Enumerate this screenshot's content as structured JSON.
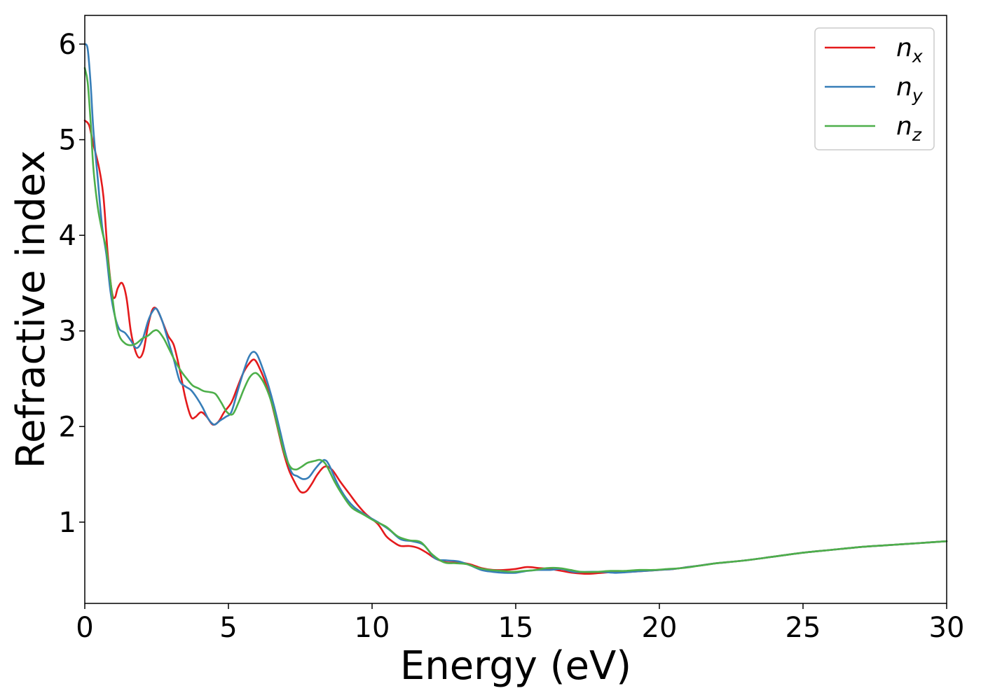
{
  "chart_data": {
    "type": "line",
    "xlabel": "Energy (eV)",
    "ylabel": "Refractive index",
    "xlim": [
      0,
      30
    ],
    "ylim": [
      0.15,
      6.3
    ],
    "xticks": [
      0,
      5,
      10,
      15,
      20,
      25,
      30
    ],
    "yticks": [
      1,
      2,
      3,
      4,
      5,
      6
    ],
    "grid": false,
    "legend_position": "top-right",
    "series": [
      {
        "name": "n",
        "subscript": "x",
        "color": "#e41a1c",
        "points": [
          [
            0,
            5.2
          ],
          [
            0.15,
            5.15
          ],
          [
            0.3,
            4.95
          ],
          [
            0.5,
            4.7
          ],
          [
            0.65,
            4.4
          ],
          [
            0.8,
            3.8
          ],
          [
            0.95,
            3.4
          ],
          [
            1.05,
            3.35
          ],
          [
            1.15,
            3.45
          ],
          [
            1.3,
            3.5
          ],
          [
            1.45,
            3.35
          ],
          [
            1.6,
            3.0
          ],
          [
            1.75,
            2.8
          ],
          [
            1.9,
            2.72
          ],
          [
            2.05,
            2.8
          ],
          [
            2.2,
            3.05
          ],
          [
            2.35,
            3.22
          ],
          [
            2.5,
            3.23
          ],
          [
            2.7,
            3.1
          ],
          [
            2.9,
            2.95
          ],
          [
            3.1,
            2.85
          ],
          [
            3.3,
            2.6
          ],
          [
            3.5,
            2.3
          ],
          [
            3.7,
            2.1
          ],
          [
            3.85,
            2.1
          ],
          [
            4.05,
            2.15
          ],
          [
            4.25,
            2.1
          ],
          [
            4.45,
            2.02
          ],
          [
            4.65,
            2.05
          ],
          [
            4.85,
            2.15
          ],
          [
            5.1,
            2.25
          ],
          [
            5.3,
            2.4
          ],
          [
            5.5,
            2.55
          ],
          [
            5.7,
            2.65
          ],
          [
            5.9,
            2.7
          ],
          [
            6.1,
            2.6
          ],
          [
            6.3,
            2.45
          ],
          [
            6.5,
            2.25
          ],
          [
            6.7,
            2.0
          ],
          [
            6.9,
            1.75
          ],
          [
            7.1,
            1.55
          ],
          [
            7.3,
            1.42
          ],
          [
            7.5,
            1.32
          ],
          [
            7.7,
            1.32
          ],
          [
            7.9,
            1.4
          ],
          [
            8.1,
            1.5
          ],
          [
            8.35,
            1.58
          ],
          [
            8.6,
            1.55
          ],
          [
            8.9,
            1.42
          ],
          [
            9.2,
            1.3
          ],
          [
            9.5,
            1.18
          ],
          [
            9.8,
            1.08
          ],
          [
            10.2,
            0.98
          ],
          [
            10.5,
            0.85
          ],
          [
            10.8,
            0.78
          ],
          [
            11.0,
            0.75
          ],
          [
            11.3,
            0.75
          ],
          [
            11.6,
            0.73
          ],
          [
            11.9,
            0.68
          ],
          [
            12.2,
            0.62
          ],
          [
            12.6,
            0.58
          ],
          [
            13.0,
            0.58
          ],
          [
            13.4,
            0.56
          ],
          [
            13.8,
            0.52
          ],
          [
            14.2,
            0.5
          ],
          [
            14.6,
            0.5
          ],
          [
            15.0,
            0.51
          ],
          [
            15.4,
            0.53
          ],
          [
            15.8,
            0.52
          ],
          [
            16.2,
            0.51
          ],
          [
            16.6,
            0.49
          ],
          [
            17.0,
            0.47
          ],
          [
            17.5,
            0.46
          ],
          [
            18.0,
            0.47
          ],
          [
            18.5,
            0.48
          ],
          [
            19.0,
            0.48
          ],
          [
            19.5,
            0.49
          ],
          [
            20.0,
            0.5
          ],
          [
            20.5,
            0.51
          ],
          [
            21.0,
            0.53
          ],
          [
            21.5,
            0.55
          ],
          [
            22,
            0.57
          ],
          [
            23,
            0.6
          ],
          [
            24,
            0.64
          ],
          [
            25,
            0.68
          ],
          [
            26,
            0.71
          ],
          [
            27,
            0.74
          ],
          [
            28,
            0.76
          ],
          [
            29,
            0.78
          ],
          [
            30,
            0.8
          ]
        ]
      },
      {
        "name": "n",
        "subscript": "y",
        "color": "#377eb8",
        "points": [
          [
            0,
            6.0
          ],
          [
            0.1,
            5.95
          ],
          [
            0.2,
            5.6
          ],
          [
            0.3,
            5.1
          ],
          [
            0.45,
            4.6
          ],
          [
            0.6,
            4.1
          ],
          [
            0.75,
            3.8
          ],
          [
            0.9,
            3.4
          ],
          [
            1.05,
            3.15
          ],
          [
            1.2,
            3.02
          ],
          [
            1.4,
            2.98
          ],
          [
            1.6,
            2.9
          ],
          [
            1.8,
            2.82
          ],
          [
            2.0,
            2.9
          ],
          [
            2.2,
            3.1
          ],
          [
            2.35,
            3.2
          ],
          [
            2.5,
            3.23
          ],
          [
            2.7,
            3.1
          ],
          [
            2.9,
            2.9
          ],
          [
            3.1,
            2.7
          ],
          [
            3.3,
            2.48
          ],
          [
            3.5,
            2.42
          ],
          [
            3.7,
            2.38
          ],
          [
            3.9,
            2.3
          ],
          [
            4.1,
            2.2
          ],
          [
            4.3,
            2.08
          ],
          [
            4.5,
            2.02
          ],
          [
            4.7,
            2.06
          ],
          [
            4.9,
            2.1
          ],
          [
            5.1,
            2.15
          ],
          [
            5.3,
            2.35
          ],
          [
            5.5,
            2.55
          ],
          [
            5.7,
            2.72
          ],
          [
            5.85,
            2.78
          ],
          [
            6.0,
            2.75
          ],
          [
            6.2,
            2.6
          ],
          [
            6.4,
            2.42
          ],
          [
            6.6,
            2.2
          ],
          [
            6.8,
            1.95
          ],
          [
            7.0,
            1.7
          ],
          [
            7.2,
            1.52
          ],
          [
            7.4,
            1.48
          ],
          [
            7.6,
            1.45
          ],
          [
            7.8,
            1.47
          ],
          [
            8.0,
            1.55
          ],
          [
            8.2,
            1.62
          ],
          [
            8.35,
            1.65
          ],
          [
            8.5,
            1.6
          ],
          [
            8.8,
            1.4
          ],
          [
            9.1,
            1.25
          ],
          [
            9.4,
            1.15
          ],
          [
            9.8,
            1.07
          ],
          [
            10.2,
            1.0
          ],
          [
            10.6,
            0.92
          ],
          [
            11.0,
            0.82
          ],
          [
            11.4,
            0.8
          ],
          [
            11.8,
            0.76
          ],
          [
            12.2,
            0.62
          ],
          [
            12.6,
            0.6
          ],
          [
            13.0,
            0.59
          ],
          [
            13.4,
            0.55
          ],
          [
            13.8,
            0.5
          ],
          [
            14.2,
            0.48
          ],
          [
            14.6,
            0.47
          ],
          [
            15.0,
            0.47
          ],
          [
            15.4,
            0.49
          ],
          [
            15.8,
            0.5
          ],
          [
            16.2,
            0.5
          ],
          [
            16.6,
            0.51
          ],
          [
            17.0,
            0.48
          ],
          [
            17.5,
            0.48
          ],
          [
            18.0,
            0.48
          ],
          [
            18.5,
            0.47
          ],
          [
            19.0,
            0.48
          ],
          [
            19.5,
            0.49
          ],
          [
            20.0,
            0.5
          ],
          [
            20.5,
            0.51
          ],
          [
            21.0,
            0.53
          ],
          [
            21.5,
            0.55
          ],
          [
            22,
            0.57
          ],
          [
            23,
            0.6
          ],
          [
            24,
            0.64
          ],
          [
            25,
            0.68
          ],
          [
            26,
            0.71
          ],
          [
            27,
            0.74
          ],
          [
            28,
            0.76
          ],
          [
            29,
            0.78
          ],
          [
            30,
            0.8
          ]
        ]
      },
      {
        "name": "n",
        "subscript": "z",
        "color": "#4daf4a",
        "points": [
          [
            0,
            5.75
          ],
          [
            0.1,
            5.6
          ],
          [
            0.2,
            5.2
          ],
          [
            0.3,
            4.7
          ],
          [
            0.45,
            4.3
          ],
          [
            0.6,
            4.05
          ],
          [
            0.75,
            3.85
          ],
          [
            0.9,
            3.5
          ],
          [
            1.05,
            3.15
          ],
          [
            1.2,
            2.95
          ],
          [
            1.4,
            2.87
          ],
          [
            1.6,
            2.85
          ],
          [
            1.8,
            2.87
          ],
          [
            2.0,
            2.92
          ],
          [
            2.2,
            2.95
          ],
          [
            2.4,
            3.0
          ],
          [
            2.55,
            3.0
          ],
          [
            2.75,
            2.92
          ],
          [
            2.95,
            2.8
          ],
          [
            3.15,
            2.68
          ],
          [
            3.35,
            2.58
          ],
          [
            3.55,
            2.5
          ],
          [
            3.75,
            2.43
          ],
          [
            3.95,
            2.4
          ],
          [
            4.15,
            2.37
          ],
          [
            4.35,
            2.36
          ],
          [
            4.55,
            2.34
          ],
          [
            4.75,
            2.25
          ],
          [
            4.95,
            2.15
          ],
          [
            5.15,
            2.13
          ],
          [
            5.35,
            2.25
          ],
          [
            5.55,
            2.4
          ],
          [
            5.75,
            2.52
          ],
          [
            5.95,
            2.56
          ],
          [
            6.15,
            2.5
          ],
          [
            6.35,
            2.38
          ],
          [
            6.55,
            2.2
          ],
          [
            6.75,
            1.95
          ],
          [
            6.95,
            1.72
          ],
          [
            7.15,
            1.58
          ],
          [
            7.35,
            1.55
          ],
          [
            7.55,
            1.58
          ],
          [
            7.75,
            1.62
          ],
          [
            8.0,
            1.64
          ],
          [
            8.2,
            1.65
          ],
          [
            8.4,
            1.6
          ],
          [
            8.7,
            1.42
          ],
          [
            9.0,
            1.27
          ],
          [
            9.3,
            1.15
          ],
          [
            9.7,
            1.08
          ],
          [
            10.1,
            1.01
          ],
          [
            10.5,
            0.95
          ],
          [
            10.9,
            0.85
          ],
          [
            11.3,
            0.81
          ],
          [
            11.7,
            0.79
          ],
          [
            12.1,
            0.66
          ],
          [
            12.5,
            0.58
          ],
          [
            12.9,
            0.57
          ],
          [
            13.3,
            0.56
          ],
          [
            13.7,
            0.52
          ],
          [
            14.1,
            0.5
          ],
          [
            14.5,
            0.49
          ],
          [
            14.9,
            0.48
          ],
          [
            15.3,
            0.49
          ],
          [
            15.7,
            0.5
          ],
          [
            16.1,
            0.52
          ],
          [
            16.5,
            0.52
          ],
          [
            16.9,
            0.5
          ],
          [
            17.3,
            0.48
          ],
          [
            17.8,
            0.48
          ],
          [
            18.3,
            0.49
          ],
          [
            18.8,
            0.49
          ],
          [
            19.3,
            0.5
          ],
          [
            19.8,
            0.5
          ],
          [
            20.3,
            0.51
          ],
          [
            20.8,
            0.52
          ],
          [
            21.3,
            0.54
          ],
          [
            22,
            0.57
          ],
          [
            23,
            0.6
          ],
          [
            24,
            0.64
          ],
          [
            25,
            0.68
          ],
          [
            26,
            0.71
          ],
          [
            27,
            0.74
          ],
          [
            28,
            0.76
          ],
          [
            29,
            0.78
          ],
          [
            30,
            0.8
          ]
        ]
      }
    ]
  }
}
